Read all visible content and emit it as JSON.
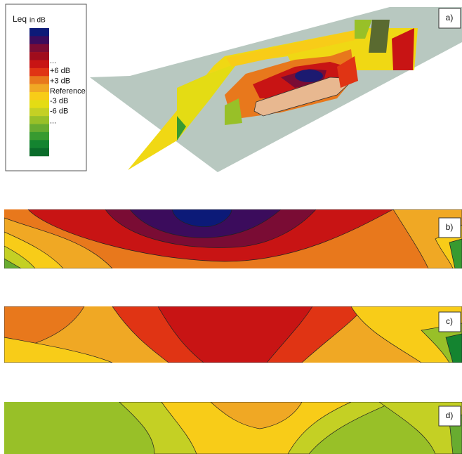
{
  "legend": {
    "title": "Leq",
    "unit": "in dB",
    "swatches": [
      "#0c1a78",
      "#3b0c5c",
      "#7a0c34",
      "#a00c1c",
      "#c81414",
      "#e03414",
      "#e8781c",
      "#f0a824",
      "#f8cc18",
      "#e4dc14",
      "#c4d024",
      "#98c028",
      "#68ac30",
      "#389a30",
      "#148430",
      "#0a6c2a"
    ],
    "labels": [
      "...",
      "+6 dB",
      "+3 dB",
      "Reference",
      "-3 dB",
      "-6 dB",
      "..."
    ]
  },
  "panels": [
    {
      "label": "a)"
    },
    {
      "label": "b)"
    },
    {
      "label": "c)"
    },
    {
      "label": "d)"
    }
  ]
}
